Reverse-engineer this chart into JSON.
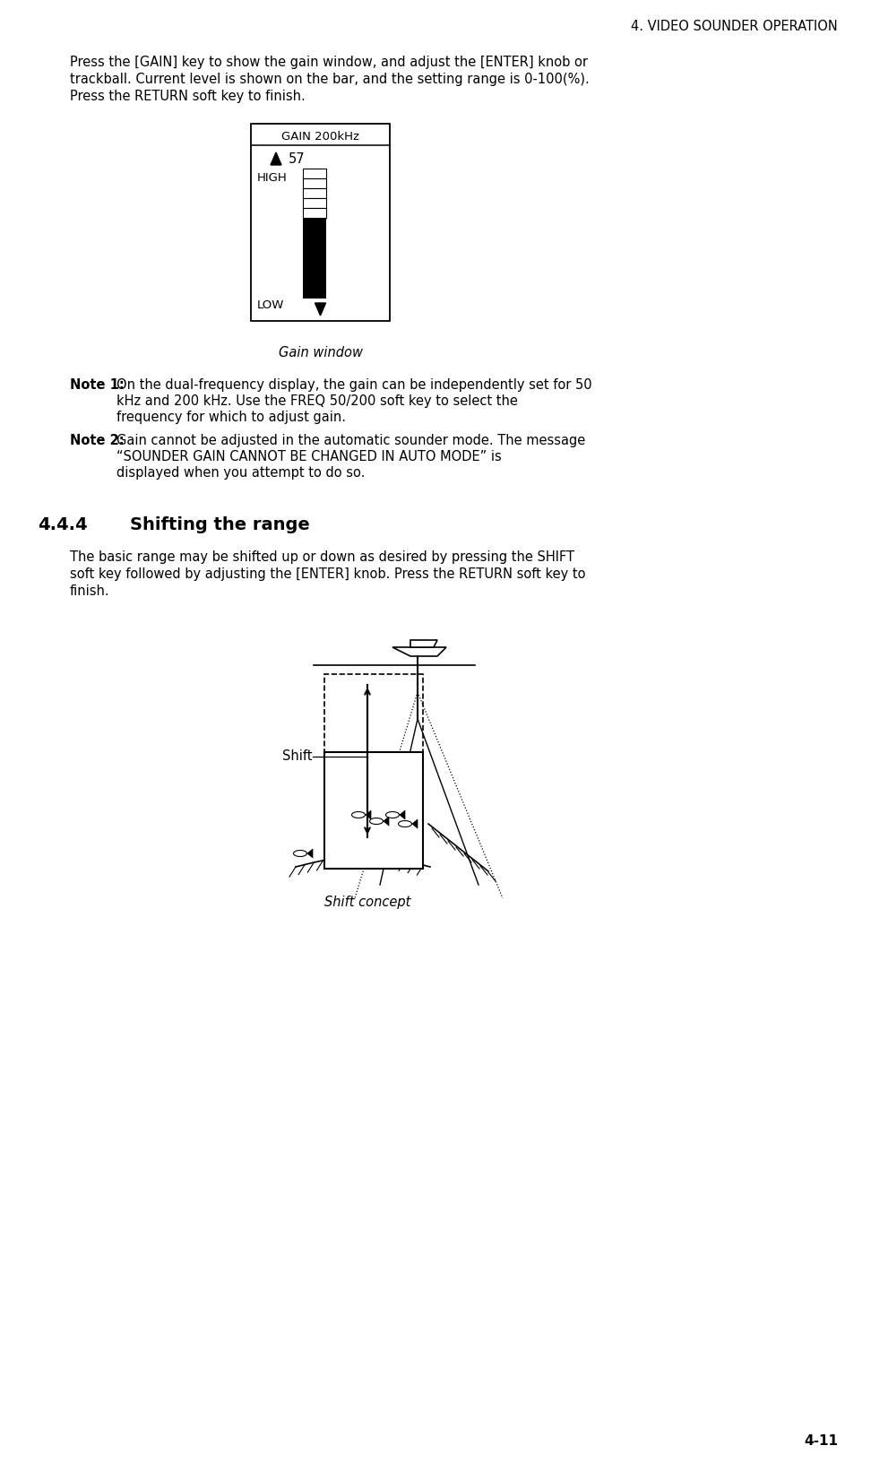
{
  "page_header": "4. VIDEO SOUNDER OPERATION",
  "page_number": "4-11",
  "body_text_1_line1": "Press the [GAIN] key to show the gain window, and adjust the [ENTER] knob or",
  "body_text_1_line2": "trackball. Current level is shown on the bar, and the setting range is 0-100(%).",
  "body_text_1_line3": "Press the RETURN soft key to finish.",
  "gain_window_title": "GAIN 200kHz",
  "gain_value": "57",
  "gain_high_label": "HIGH",
  "gain_low_label": "LOW",
  "gain_caption": "Gain window",
  "note1_bold": "Note 1:",
  "note1_line1": "On the dual-frequency display, the gain can be independently set for 50",
  "note1_line2": "kHz and 200 kHz. Use the FREQ 50/200 soft key to select the",
  "note1_line3": "frequency for which to adjust gain.",
  "note2_bold": "Note 2:",
  "note2_line1": "Gain cannot be adjusted in the automatic sounder mode. The message",
  "note2_line2": "“SOUNDER GAIN CANNOT BE CHANGED IN AUTO MODE” is",
  "note2_line3": "displayed when you attempt to do so.",
  "section_number": "4.4.4",
  "section_title": "Shifting the range",
  "body_text_2_line1": "The basic range may be shifted up or down as desired by pressing the SHIFT",
  "body_text_2_line2": "soft key followed by adjusting the [ENTER] knob. Press the RETURN soft key to",
  "body_text_2_line3": "finish.",
  "shift_label": "Shift",
  "shift_caption": "Shift concept",
  "bg_color": "#ffffff",
  "text_color": "#000000"
}
